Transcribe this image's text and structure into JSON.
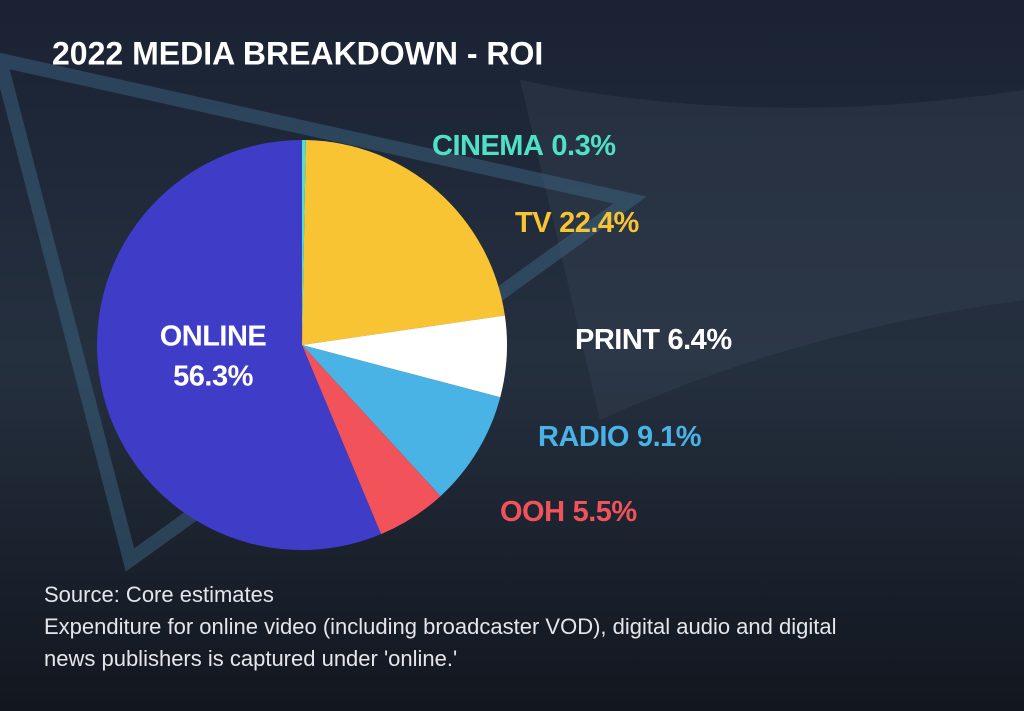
{
  "chart_data": {
    "type": "pie",
    "title": "2022 MEDIA BREAKDOWN - ROI",
    "categories": [
      "CINEMA",
      "TV",
      "PRINT",
      "RADIO",
      "OOH",
      "ONLINE"
    ],
    "values": [
      0.3,
      22.4,
      6.4,
      9.1,
      5.5,
      56.3
    ],
    "value_labels": [
      "0.3%",
      "22.4%",
      "6.4%",
      "9.1%",
      "5.5%",
      "56.3%"
    ],
    "colors": [
      "#4fe0c8",
      "#f9c433",
      "#ffffff",
      "#4ab3e6",
      "#f2525a",
      "#3f3dc8"
    ],
    "footnotes": [
      "Source: Core estimates",
      "Expenditure for online video (including broadcaster VOD), digital audio and digital",
      "news publishers is captured under 'online.'"
    ]
  }
}
